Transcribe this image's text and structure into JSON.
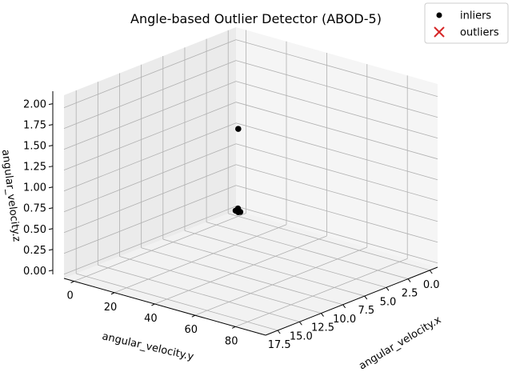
{
  "chart_data": {
    "type": "scatter",
    "title": "Angle-based Outlier Detector (ABOD-5)",
    "xlabel": "angular_velocity.x",
    "ylabel": "angular_velocity.y",
    "zlabel": "angular_velocity.z",
    "x_ticks": [
      "0",
      "20",
      "40",
      "60",
      "80"
    ],
    "y_ticks": [
      "0.0",
      "2.5",
      "5.0",
      "7.5",
      "10.0",
      "12.5",
      "15.0",
      "17.5"
    ],
    "z_ticks": [
      "0.00",
      "0.25",
      "0.50",
      "0.75",
      "1.00",
      "1.25",
      "1.50",
      "1.75",
      "2.00"
    ],
    "legend_position": "top-right",
    "series": [
      {
        "name": "inliers",
        "marker": "circle",
        "color": "#000000",
        "points": [
          {
            "x": 0,
            "y": 0,
            "z": 0
          },
          {
            "x": 0.5,
            "y": 0.2,
            "z": 0.02
          },
          {
            "x": 1,
            "y": 0,
            "z": 0.01
          },
          {
            "x": 0,
            "y": 0.3,
            "z": 0.03
          },
          {
            "x": 0.3,
            "y": 0.1,
            "z": 0.05
          },
          {
            "x": 0,
            "y": 0,
            "z": 1
          }
        ]
      },
      {
        "name": "outliers",
        "marker": "x",
        "color": "#d62728",
        "points": []
      }
    ]
  }
}
